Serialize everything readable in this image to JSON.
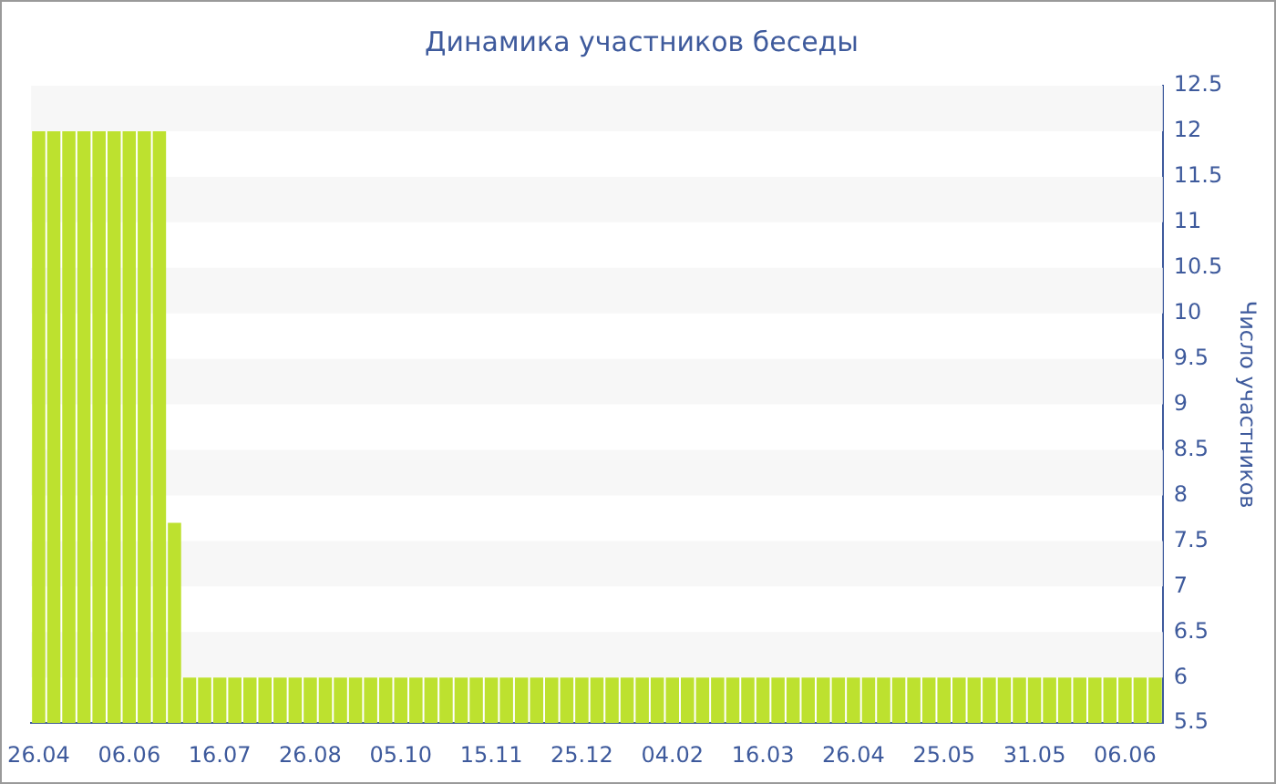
{
  "chart_data": {
    "type": "bar",
    "title": "Динамика участников беседы",
    "ylabel": "Число участников",
    "categories": [
      "26.04",
      null,
      null,
      null,
      null,
      null,
      "06.06",
      null,
      null,
      null,
      null,
      null,
      "16.07",
      null,
      null,
      null,
      null,
      null,
      "26.08",
      null,
      null,
      null,
      null,
      null,
      "05.10",
      null,
      null,
      null,
      null,
      null,
      "15.11",
      null,
      null,
      null,
      null,
      null,
      "25.12",
      null,
      null,
      null,
      null,
      null,
      "04.02",
      null,
      null,
      null,
      null,
      null,
      "16.03",
      null,
      null,
      null,
      null,
      null,
      "26.04",
      null,
      null,
      null,
      null,
      null,
      "25.05",
      null,
      null,
      null,
      null,
      null,
      "31.05",
      null,
      null,
      null,
      null,
      null,
      "06.06",
      null,
      null
    ],
    "values": [
      12,
      12,
      12,
      12,
      12,
      12,
      12,
      12,
      12,
      7.7,
      6,
      6,
      6,
      6,
      6,
      6,
      6,
      6,
      6,
      6,
      6,
      6,
      6,
      6,
      6,
      6,
      6,
      6,
      6,
      6,
      6,
      6,
      6,
      6,
      6,
      6,
      6,
      6,
      6,
      6,
      6,
      6,
      6,
      6,
      6,
      6,
      6,
      6,
      6,
      6,
      6,
      6,
      6,
      6,
      6,
      6,
      6,
      6,
      6,
      6,
      6,
      6,
      6,
      6,
      6,
      6,
      6,
      6,
      6,
      6,
      6,
      6,
      6,
      6,
      6
    ],
    "color": "#bde12f",
    "ylim": [
      5.5,
      12.5
    ],
    "yticks": [
      5.5,
      6,
      6.5,
      7,
      7.5,
      8,
      8.5,
      9,
      9.5,
      10,
      10.5,
      11,
      11.5,
      12,
      12.5
    ],
    "bands": [
      {
        "axis": "y",
        "from": 6,
        "to": 6.5,
        "color": "#f7f7f7"
      },
      {
        "axis": "y",
        "from": 7,
        "to": 7.5,
        "color": "#f7f7f7"
      },
      {
        "axis": "y",
        "from": 8,
        "to": 8.5,
        "color": "#f7f7f7"
      },
      {
        "axis": "y",
        "from": 9,
        "to": 9.5,
        "color": "#f7f7f7"
      },
      {
        "axis": "y",
        "from": 10,
        "to": 10.5,
        "color": "#f7f7f7"
      },
      {
        "axis": "y",
        "from": 11,
        "to": 11.5,
        "color": "#f7f7f7"
      },
      {
        "axis": "y",
        "from": 12,
        "to": 12.5,
        "color": "#f7f7f7"
      }
    ]
  }
}
